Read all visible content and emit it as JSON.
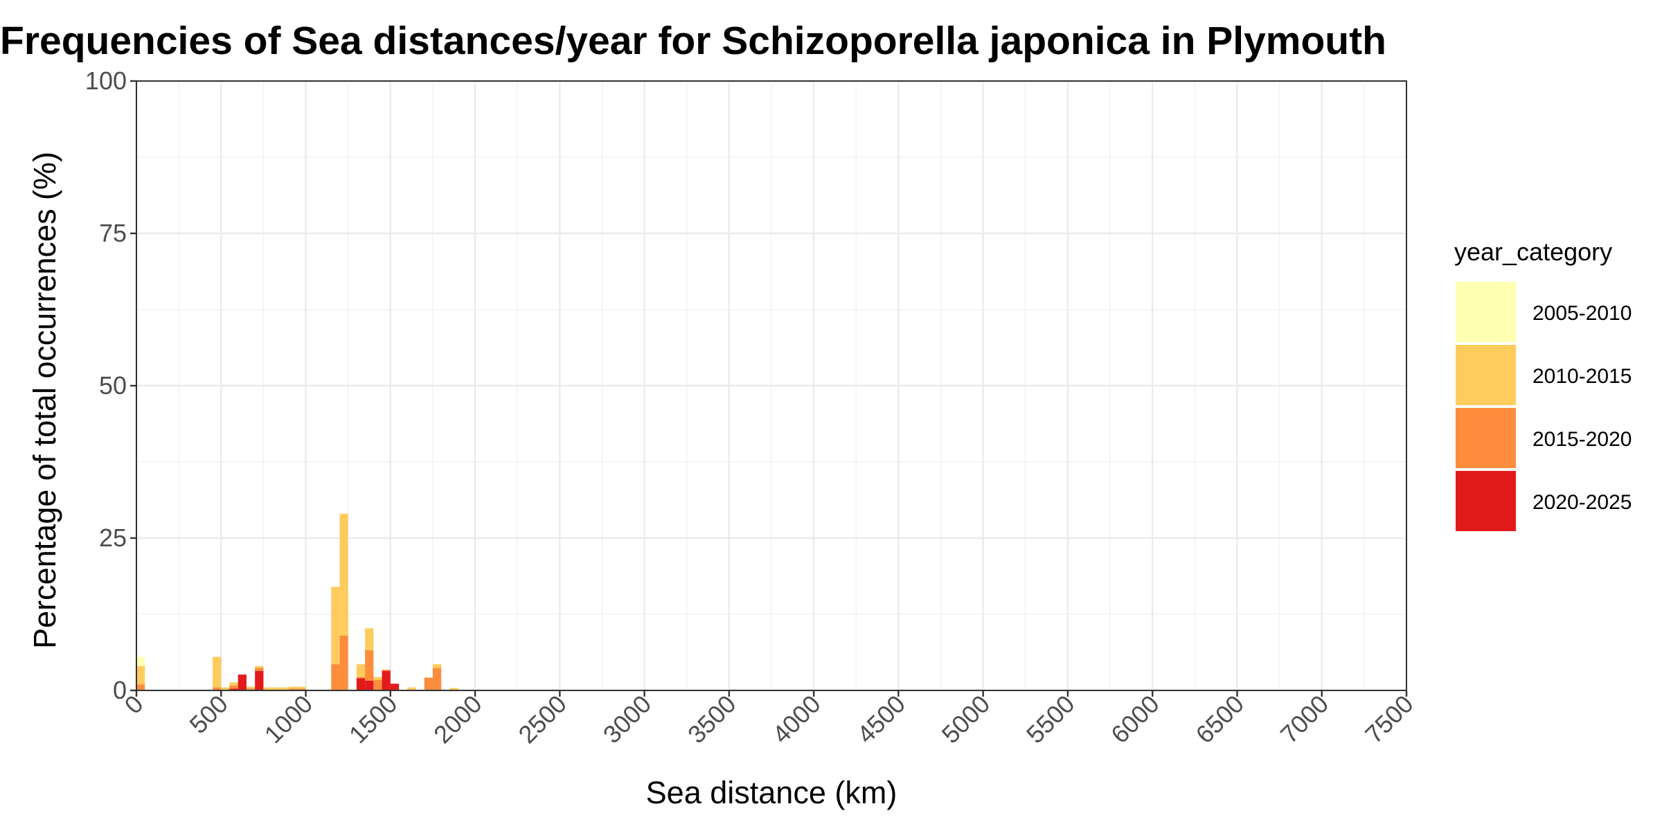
{
  "chart_data": {
    "type": "bar",
    "stacked": true,
    "title": "Frequencies of Sea distances/year for Schizoporella japonica in Plymouth",
    "xlabel": "Sea distance (km)",
    "ylabel": "Percentage of total occurrences (%)",
    "xlim": [
      0,
      7500
    ],
    "ylim": [
      0,
      100
    ],
    "x_ticks": [
      "0",
      "500",
      "1000",
      "1500",
      "2000",
      "2500",
      "3000",
      "3500",
      "4000",
      "4500",
      "5000",
      "5500",
      "6000",
      "6500",
      "7000",
      "7500"
    ],
    "y_ticks": [
      "0",
      "25",
      "50",
      "75",
      "100"
    ],
    "grid": true,
    "legend": {
      "title": "year_category",
      "position": "right",
      "entries": [
        "2005-2010",
        "2010-2015",
        "2015-2020",
        "2020-2025"
      ]
    },
    "colors": {
      "2005-2010": "#ffffb2",
      "2010-2015": "#fecc5c",
      "2015-2020": "#fd8d3c",
      "2020-2025": "#e31a1c"
    },
    "bin_width_km": 50,
    "bins": [
      {
        "x_start": 0,
        "values": {
          "2005-2010": 1.5,
          "2010-2015": 3.0,
          "2015-2020": 1.0,
          "2020-2025": 0
        }
      },
      {
        "x_start": 450,
        "values": {
          "2005-2010": 0,
          "2010-2015": 5.0,
          "2015-2020": 0.5,
          "2020-2025": 0
        }
      },
      {
        "x_start": 500,
        "values": {
          "2005-2010": 0,
          "2010-2015": 0.5,
          "2015-2020": 0,
          "2020-2025": 0
        }
      },
      {
        "x_start": 550,
        "values": {
          "2005-2010": 0,
          "2010-2015": 0.5,
          "2015-2020": 0.5,
          "2020-2025": 0.3
        }
      },
      {
        "x_start": 600,
        "values": {
          "2005-2010": 0,
          "2010-2015": 0,
          "2015-2020": 0,
          "2020-2025": 2.6
        }
      },
      {
        "x_start": 650,
        "values": {
          "2005-2010": 0,
          "2010-2015": 0.3,
          "2015-2020": 0.3,
          "2020-2025": 0
        }
      },
      {
        "x_start": 700,
        "values": {
          "2005-2010": 0,
          "2010-2015": 0.3,
          "2015-2020": 0.5,
          "2020-2025": 3.2
        }
      },
      {
        "x_start": 750,
        "values": {
          "2005-2010": 0,
          "2010-2015": 0.5,
          "2015-2020": 0,
          "2020-2025": 0
        }
      },
      {
        "x_start": 800,
        "values": {
          "2005-2010": 0,
          "2010-2015": 0.5,
          "2015-2020": 0,
          "2020-2025": 0
        }
      },
      {
        "x_start": 850,
        "values": {
          "2005-2010": 0,
          "2010-2015": 0.5,
          "2015-2020": 0,
          "2020-2025": 0
        }
      },
      {
        "x_start": 900,
        "values": {
          "2005-2010": 0,
          "2010-2015": 0.3,
          "2015-2020": 0.3,
          "2020-2025": 0
        }
      },
      {
        "x_start": 950,
        "values": {
          "2005-2010": 0,
          "2010-2015": 0.3,
          "2015-2020": 0.3,
          "2020-2025": 0
        }
      },
      {
        "x_start": 1150,
        "values": {
          "2005-2010": 0,
          "2010-2015": 12.7,
          "2015-2020": 4.3,
          "2020-2025": 0
        }
      },
      {
        "x_start": 1200,
        "values": {
          "2005-2010": 0,
          "2010-2015": 20.0,
          "2015-2020": 9.0,
          "2020-2025": 0
        }
      },
      {
        "x_start": 1300,
        "values": {
          "2005-2010": 0,
          "2010-2015": 2.1,
          "2015-2020": 0.2,
          "2020-2025": 2.0
        }
      },
      {
        "x_start": 1350,
        "values": {
          "2005-2010": 0,
          "2010-2015": 3.6,
          "2015-2020": 5.0,
          "2020-2025": 1.6
        }
      },
      {
        "x_start": 1400,
        "values": {
          "2005-2010": 0,
          "2010-2015": 0.5,
          "2015-2020": 1.7,
          "2020-2025": 0
        }
      },
      {
        "x_start": 1450,
        "values": {
          "2005-2010": 0,
          "2010-2015": 0,
          "2015-2020": 0.2,
          "2020-2025": 3.2
        }
      },
      {
        "x_start": 1500,
        "values": {
          "2005-2010": 0,
          "2010-2015": 0,
          "2015-2020": 0,
          "2020-2025": 1.1
        }
      },
      {
        "x_start": 1600,
        "values": {
          "2005-2010": 0,
          "2010-2015": 0.5,
          "2015-2020": 0,
          "2020-2025": 0
        }
      },
      {
        "x_start": 1700,
        "values": {
          "2005-2010": 0,
          "2010-2015": 0,
          "2015-2020": 2.1,
          "2020-2025": 0
        }
      },
      {
        "x_start": 1750,
        "values": {
          "2005-2010": 0,
          "2010-2015": 0.6,
          "2015-2020": 3.7,
          "2020-2025": 0
        }
      },
      {
        "x_start": 1850,
        "values": {
          "2005-2010": 0,
          "2010-2015": 0.4,
          "2015-2020": 0,
          "2020-2025": 0
        }
      }
    ]
  }
}
